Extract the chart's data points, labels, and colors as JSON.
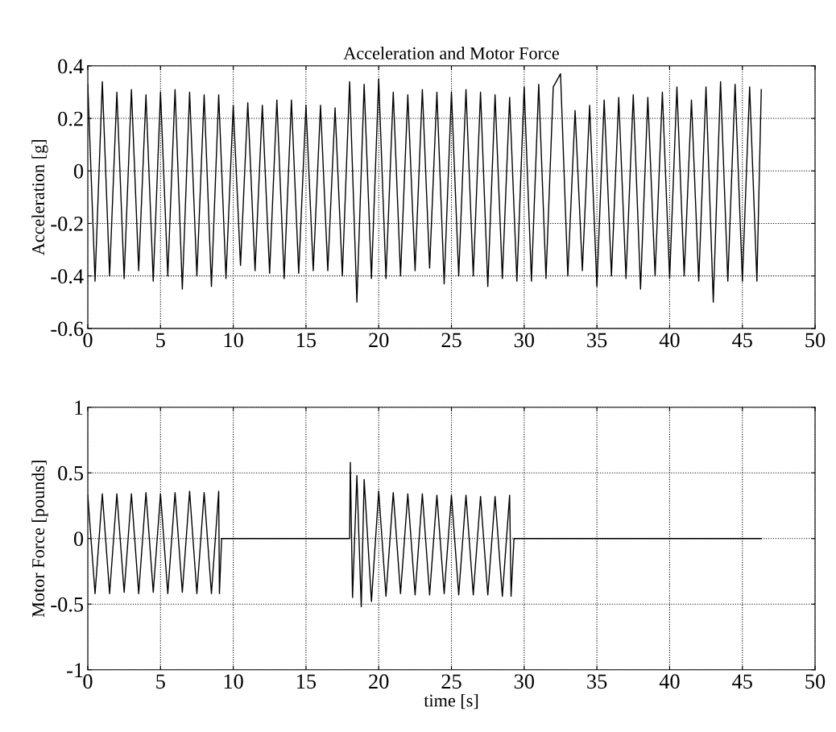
{
  "chart_data": [
    {
      "type": "line",
      "title": "Acceleration and Motor Force",
      "ylabel": "Acceleration [g]",
      "xlim": [
        0,
        50
      ],
      "xticks": [
        0,
        5,
        10,
        15,
        20,
        25,
        30,
        35,
        40,
        45,
        50
      ],
      "ylim": [
        -0.6,
        0.4
      ],
      "yticks": [
        {
          "value": -0.6,
          "label": "-0.6"
        },
        {
          "value": -0.4,
          "label": "-0.4"
        },
        {
          "value": -0.2,
          "label": "-0.2"
        },
        0,
        0.2,
        0.4
      ],
      "grid": true,
      "line_style": "solid",
      "series": [
        {
          "color": "#000000",
          "x": [
            0,
            0.5,
            1,
            1.5,
            2,
            2.5,
            3,
            3.5,
            4,
            4.5,
            5,
            5.5,
            6,
            6.5,
            7,
            7.5,
            8,
            8.5,
            9,
            9.5,
            10,
            10.5,
            11,
            11.5,
            12,
            12.5,
            13,
            13.5,
            14,
            14.5,
            15,
            15.5,
            16,
            16.5,
            17,
            17.5,
            18,
            18.5,
            19,
            19.5,
            20,
            20.5,
            21,
            21.5,
            22,
            22.5,
            23,
            23.5,
            24,
            24.5,
            25,
            25.5,
            26,
            26.5,
            27,
            27.5,
            28,
            28.5,
            29,
            29.5,
            30,
            30.5,
            31,
            31.5,
            32,
            32.5,
            33,
            33.5,
            34,
            34.5,
            35,
            35.5,
            36,
            36.5,
            37,
            37.5,
            38,
            38.5,
            39,
            39.5,
            40,
            40.5,
            41,
            41.5,
            42,
            42.5,
            43,
            43.5,
            44,
            44.5,
            45,
            45.5,
            46,
            46.3
          ],
          "values": [
            0.33,
            -0.42,
            0.34,
            -0.4,
            0.3,
            -0.41,
            0.31,
            -0.38,
            0.29,
            -0.42,
            0.3,
            -0.4,
            0.31,
            -0.45,
            0.3,
            -0.4,
            0.29,
            -0.44,
            0.29,
            -0.41,
            0.25,
            -0.36,
            0.26,
            -0.38,
            0.25,
            -0.39,
            0.27,
            -0.41,
            0.27,
            -0.39,
            0.25,
            -0.38,
            0.25,
            -0.38,
            0.24,
            -0.4,
            0.34,
            -0.5,
            0.33,
            -0.41,
            0.35,
            -0.41,
            0.3,
            -0.4,
            0.29,
            -0.38,
            0.31,
            -0.37,
            0.3,
            -0.43,
            0.3,
            -0.4,
            0.31,
            -0.4,
            0.3,
            -0.44,
            0.29,
            -0.41,
            0.28,
            -0.42,
            0.32,
            -0.42,
            0.33,
            -0.41,
            0.32,
            0.37,
            -0.4,
            0.23,
            -0.38,
            0.25,
            -0.44,
            0.27,
            -0.4,
            0.28,
            -0.41,
            0.29,
            -0.45,
            0.28,
            -0.4,
            0.3,
            -0.41,
            0.32,
            -0.4,
            0.27,
            -0.42,
            0.32,
            -0.5,
            0.34,
            -0.42,
            0.33,
            -0.42,
            0.32,
            -0.42,
            0.31
          ]
        }
      ]
    },
    {
      "type": "line",
      "xlabel": "time [s]",
      "ylabel": "Motor Force [pounds]",
      "xlim": [
        0,
        50
      ],
      "xticks": [
        0,
        5,
        10,
        15,
        20,
        25,
        30,
        35,
        40,
        45,
        50
      ],
      "ylim": [
        -1,
        1
      ],
      "yticks": [
        {
          "value": -1,
          "label": "-1"
        },
        {
          "value": -0.5,
          "label": "-0.5"
        },
        0,
        0.5,
        1
      ],
      "grid": true,
      "line_style": "solid",
      "series": [
        {
          "color": "#000000",
          "x": [
            0,
            0.5,
            1,
            1.5,
            2,
            2.5,
            3,
            3.5,
            4,
            4.5,
            5,
            5.5,
            6,
            6.5,
            7,
            7.5,
            8,
            8.5,
            9,
            9.05,
            9.2,
            18,
            18.05,
            18.2,
            18.5,
            18.8,
            19,
            19.5,
            20,
            20.5,
            21,
            21.5,
            22,
            22.5,
            23,
            23.5,
            24,
            24.5,
            25,
            25.5,
            26,
            26.5,
            27,
            27.5,
            28,
            28.5,
            29,
            29.1,
            29.3,
            46.3
          ],
          "values": [
            0.33,
            -0.42,
            0.34,
            -0.42,
            0.34,
            -0.41,
            0.34,
            -0.42,
            0.35,
            -0.41,
            0.34,
            -0.42,
            0.35,
            -0.41,
            0.36,
            -0.42,
            0.35,
            -0.42,
            0.36,
            -0.42,
            0,
            0,
            0.58,
            -0.45,
            0.48,
            -0.52,
            0.45,
            -0.48,
            0.36,
            -0.44,
            0.35,
            -0.42,
            0.34,
            -0.43,
            0.34,
            -0.43,
            0.33,
            -0.42,
            0.33,
            -0.43,
            0.33,
            -0.43,
            0.32,
            -0.43,
            0.32,
            -0.44,
            0.33,
            -0.44,
            0,
            0
          ]
        }
      ]
    }
  ]
}
